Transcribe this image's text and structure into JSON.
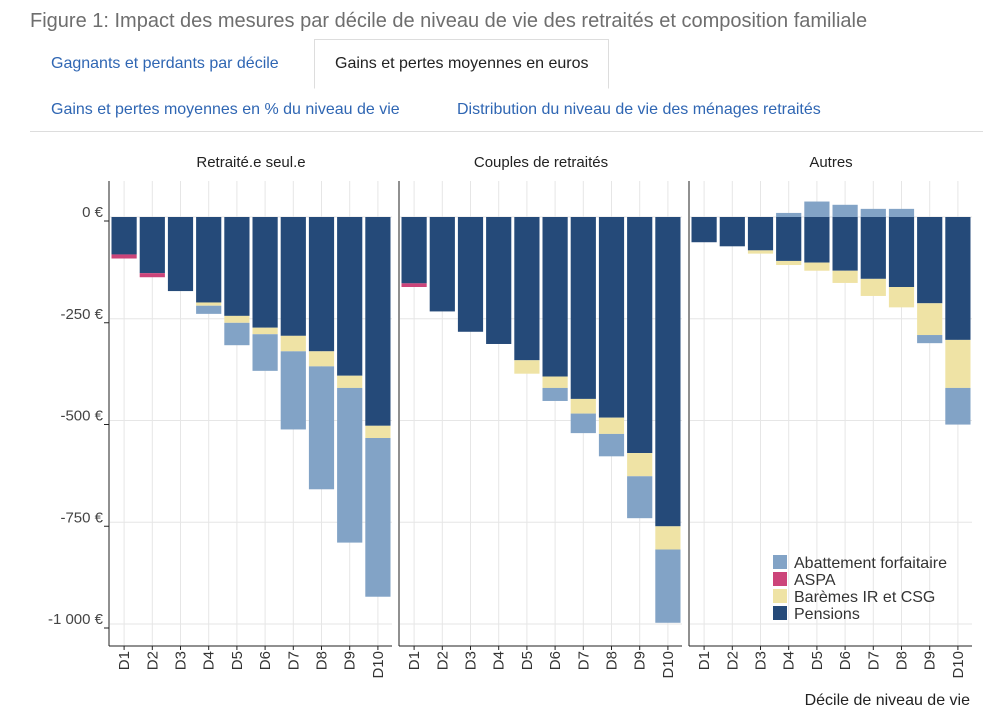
{
  "figure_title": "Figure 1: Impact des mesures par décile de niveau de vie des retraités et composition familiale",
  "tabs": [
    {
      "label": "Gagnants et perdants par décile",
      "active": false
    },
    {
      "label": "Gains et pertes moyennes en euros",
      "active": true
    },
    {
      "label": "Gains et pertes moyennes en % du niveau de vie",
      "active": false
    },
    {
      "label": "Distribution du niveau de vie des ménages retraités",
      "active": false
    }
  ],
  "colors": {
    "Abattement forfaitaire": "#82a3c6",
    "ASPA": "#cc4479",
    "Barèmes IR et CSG": "#efe3a5",
    "Pensions": "#254a79",
    "grid": "#e6e6e6",
    "axis": "#222222"
  },
  "chart_data": {
    "type": "bar",
    "stacked": true,
    "categories": [
      "D1",
      "D2",
      "D3",
      "D4",
      "D5",
      "D6",
      "D7",
      "D8",
      "D9",
      "D10"
    ],
    "ylim": [
      -1050,
      90
    ],
    "y_ticks": [
      0,
      -250,
      -500,
      -750,
      -1000
    ],
    "y_tick_labels": [
      "0 €",
      "-250 €",
      "-500 €",
      "-750 €",
      "-1 000 €"
    ],
    "xlabel": "Décile de niveau de vie",
    "ylabel": "",
    "legend_order": [
      "Abattement forfaitaire",
      "ASPA",
      "Barèmes IR et CSG",
      "Pensions"
    ],
    "stack_order": [
      "Pensions",
      "ASPA",
      "Barèmes IR et CSG",
      "Abattement forfaitaire"
    ],
    "panels": [
      {
        "title": "Retraité.e seul.e",
        "series": [
          {
            "name": "Pensions",
            "values": [
              -92,
              -138,
              -182,
              -210,
              -243,
              -272,
              -292,
              -330,
              -390,
              -513
            ]
          },
          {
            "name": "ASPA",
            "values": [
              -10,
              -10,
              0,
              0,
              0,
              0,
              0,
              0,
              0,
              0
            ]
          },
          {
            "name": "Barèmes IR et CSG",
            "values": [
              0,
              0,
              0,
              -8,
              -17,
              -16,
              -38,
              -37,
              -30,
              -30
            ]
          },
          {
            "name": "Abattement forfaitaire",
            "values": [
              0,
              0,
              0,
              -20,
              -55,
              -90,
              -192,
              -302,
              -380,
              -390
            ]
          }
        ]
      },
      {
        "title": "Couples de retraités",
        "series": [
          {
            "name": "Pensions",
            "values": [
              -163,
              -232,
              -282,
              -312,
              -352,
              -392,
              -447,
              -493,
              -580,
              -760
            ]
          },
          {
            "name": "ASPA",
            "values": [
              -9,
              0,
              0,
              0,
              0,
              0,
              0,
              0,
              0,
              0
            ]
          },
          {
            "name": "Barèmes IR et CSG",
            "values": [
              0,
              0,
              0,
              0,
              -33,
              -28,
              -36,
              -40,
              -57,
              -57
            ]
          },
          {
            "name": "Abattement forfaitaire",
            "values": [
              0,
              0,
              0,
              0,
              0,
              -32,
              -48,
              -55,
              -103,
              -180
            ]
          }
        ]
      },
      {
        "title": "Autres",
        "series": [
          {
            "name": "Pensions",
            "values": [
              -62,
              -72,
              -82,
              -108,
              -112,
              -132,
              -152,
              -172,
              -212,
              -302
            ]
          },
          {
            "name": "ASPA",
            "values": [
              0,
              0,
              0,
              0,
              0,
              0,
              0,
              0,
              0,
              0
            ]
          },
          {
            "name": "Barèmes IR et CSG",
            "values": [
              0,
              0,
              -8,
              -10,
              -20,
              -30,
              -42,
              -50,
              -78,
              -118
            ]
          },
          {
            "name": "Abattement forfaitaire",
            "values": [
              0,
              0,
              0,
              10,
              38,
              30,
              20,
              20,
              -20,
              -90
            ]
          }
        ]
      }
    ]
  }
}
